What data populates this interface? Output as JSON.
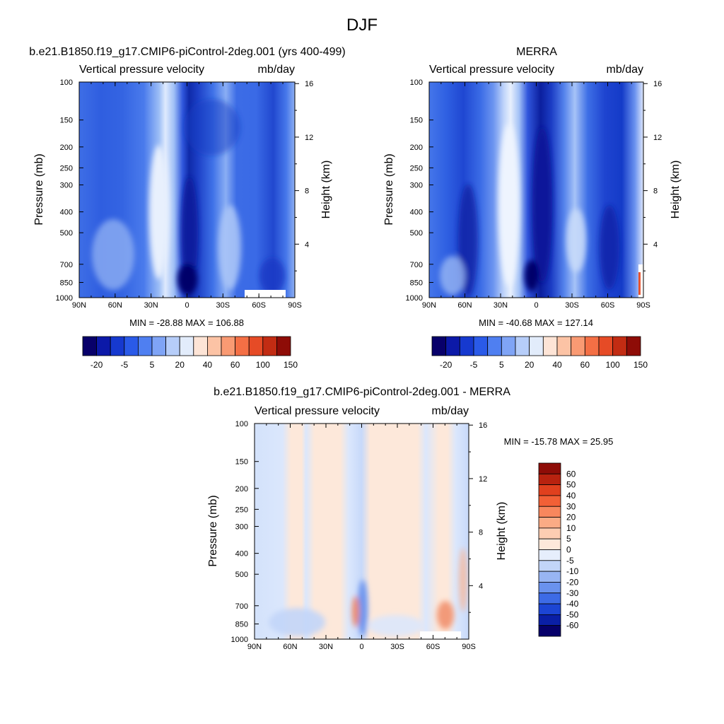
{
  "figure": {
    "title": "DJF"
  },
  "chart_data": [
    {
      "type": "heatmap",
      "title": "b.e21.B1850.f19_g17.CMIP6-piControl-2deg.001 (yrs 400-499)",
      "left_label": "Vertical pressure velocity",
      "right_label": "mb/day",
      "xlabel": "",
      "ylabel": "Pressure (mb)",
      "ylabel_right": "Height (km)",
      "x_ticks": [
        "90N",
        "60N",
        "30N",
        "0",
        "30S",
        "60S",
        "90S"
      ],
      "x_values": [
        90,
        60,
        30,
        0,
        -30,
        -60,
        -90
      ],
      "y_ticks": [
        100,
        150,
        200,
        250,
        300,
        400,
        500,
        700,
        850,
        1000
      ],
      "y_scale": "log",
      "ylim": [
        1000,
        100
      ],
      "height_ticks": [
        4,
        8,
        12,
        16
      ],
      "stats": "MIN = -28.88  MAX = 106.88",
      "colorbar": {
        "orientation": "horizontal",
        "labels": [
          "-20",
          "-5",
          "5",
          "20",
          "40",
          "60",
          "100",
          "150"
        ],
        "colors": [
          "#08006a",
          "#0c19a8",
          "#1639cf",
          "#2a5ae8",
          "#4f7ff1",
          "#7fa4f6",
          "#b6cdf9",
          "#e2ecfb",
          "#fde4d6",
          "#fcc3a5",
          "#f99a73",
          "#f46f45",
          "#e64b26",
          "#c22c13",
          "#8e0c07"
        ]
      }
    },
    {
      "type": "heatmap",
      "title": "MERRA",
      "left_label": "Vertical pressure velocity",
      "right_label": "mb/day",
      "xlabel": "",
      "ylabel": "Pressure (mb)",
      "ylabel_right": "Height (km)",
      "x_ticks": [
        "90N",
        "60N",
        "30N",
        "0",
        "30S",
        "60S",
        "90S"
      ],
      "x_values": [
        90,
        60,
        30,
        0,
        -30,
        -60,
        -90
      ],
      "y_ticks": [
        100,
        150,
        200,
        250,
        300,
        400,
        500,
        700,
        850,
        1000
      ],
      "y_scale": "log",
      "ylim": [
        1000,
        100
      ],
      "height_ticks": [
        4,
        8,
        12,
        16
      ],
      "stats": "MIN = -40.68  MAX = 127.14",
      "colorbar": {
        "orientation": "horizontal",
        "labels": [
          "-20",
          "-5",
          "5",
          "20",
          "40",
          "60",
          "100",
          "150"
        ],
        "colors": [
          "#08006a",
          "#0c19a8",
          "#1639cf",
          "#2a5ae8",
          "#4f7ff1",
          "#7fa4f6",
          "#b6cdf9",
          "#e2ecfb",
          "#fde4d6",
          "#fcc3a5",
          "#f99a73",
          "#f46f45",
          "#e64b26",
          "#c22c13",
          "#8e0c07"
        ]
      }
    },
    {
      "type": "heatmap",
      "title": "b.e21.B1850.f19_g17.CMIP6-piControl-2deg.001 - MERRA",
      "left_label": "Vertical pressure velocity",
      "right_label": "mb/day",
      "xlabel": "",
      "ylabel": "Pressure (mb)",
      "ylabel_right": "Height (km)",
      "x_ticks": [
        "90N",
        "60N",
        "30N",
        "0",
        "30S",
        "60S",
        "90S"
      ],
      "x_values": [
        90,
        60,
        30,
        0,
        -30,
        -60,
        -90
      ],
      "y_ticks": [
        100,
        150,
        200,
        250,
        300,
        400,
        500,
        700,
        850,
        1000
      ],
      "y_scale": "log",
      "ylim": [
        1000,
        100
      ],
      "height_ticks": [
        4,
        8,
        12,
        16
      ],
      "stats": "MIN = -15.78  MAX =  25.95",
      "colorbar": {
        "orientation": "vertical",
        "labels": [
          "60",
          "50",
          "40",
          "30",
          "20",
          "10",
          "5",
          "0",
          "-5",
          "-10",
          "-20",
          "-30",
          "-40",
          "-50",
          "-60"
        ],
        "colors": [
          "#8e0c07",
          "#b8220f",
          "#e0401e",
          "#f26036",
          "#f8875d",
          "#fbab85",
          "#fdcdb2",
          "#fde8da",
          "#e6eefc",
          "#c2d5f8",
          "#98b5f3",
          "#6a92ee",
          "#3d6be6",
          "#1c45d4",
          "#0a1fa6",
          "#06006a"
        ]
      }
    }
  ]
}
